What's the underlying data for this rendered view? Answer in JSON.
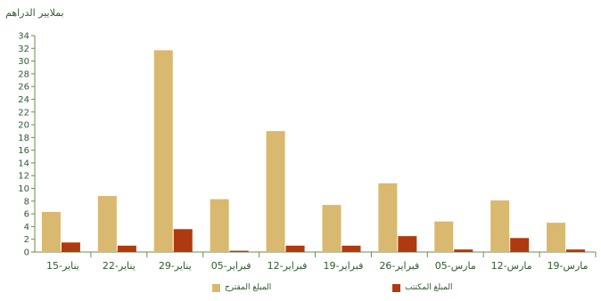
{
  "chart_data": {
    "type": "bar",
    "unit_label": "بملايير الدراهم",
    "categories": [
      "15-يناير",
      "22-يناير",
      "29-يناير",
      "05-فبراير",
      "12-فبراير",
      "19-فبراير",
      "26-فبراير",
      "05-مارس",
      "12-مارس",
      "19-مارس"
    ],
    "series": [
      {
        "name": "المبلغ المقترح",
        "color": "#d9b86f",
        "values": [
          6.3,
          8.8,
          31.7,
          8.3,
          19.0,
          7.4,
          10.8,
          4.8,
          8.1,
          4.6
        ]
      },
      {
        "name": "المبلغ المكتتب",
        "color": "#b03a10",
        "values": [
          1.5,
          1.0,
          3.6,
          0.2,
          1.0,
          1.0,
          2.5,
          0.4,
          2.2,
          0.4
        ]
      }
    ],
    "yticks": [
      0,
      2,
      4,
      6,
      8,
      10,
      12,
      14,
      16,
      18,
      20,
      22,
      24,
      26,
      28,
      30,
      32,
      34
    ],
    "ylim": [
      0,
      34
    ],
    "grid": false,
    "legend_position": "bottom"
  }
}
